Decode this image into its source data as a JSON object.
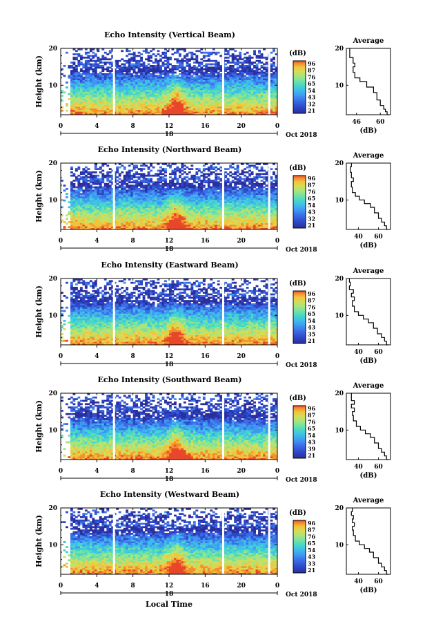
{
  "figure": {
    "xlabel": "Local Time",
    "ylabel": "Height (km)",
    "cbar_label": "(dB)",
    "avg_title": "Average",
    "avg_xlabel": "(dB)",
    "date_day": "18",
    "date_month": "Oct 2018"
  },
  "colormap": [
    "#2b2f9e",
    "#2d49c9",
    "#3b6ee6",
    "#3f98f2",
    "#3ebdea",
    "#47d7c8",
    "#74e3a2",
    "#aae47b",
    "#d6dc58",
    "#f2c43d",
    "#f48f2c",
    "#e8472a"
  ],
  "chart_data": [
    {
      "type": "heatmap",
      "title": "Echo Intensity (Vertical Beam)",
      "x": [
        0,
        24
      ],
      "xticks": [
        "0",
        "4",
        "8",
        "12",
        "16",
        "20",
        "0"
      ],
      "ylim": [
        2,
        20
      ],
      "yticks": [
        "20",
        "10"
      ],
      "ytick_values": [
        20,
        10
      ],
      "cbar_ticks": [
        "96",
        "87",
        "76",
        "65",
        "54",
        "43",
        "32",
        "21"
      ],
      "avg_xticks": [
        "46",
        "60"
      ],
      "avg_xtick_values": [
        46,
        60
      ],
      "avg_xlim": [
        40,
        66
      ],
      "avg_profile": [
        [
          65,
          2
        ],
        [
          64,
          2.8
        ],
        [
          63,
          3.5
        ],
        [
          62,
          4.5
        ],
        [
          60,
          6
        ],
        [
          58,
          8
        ],
        [
          56,
          9.5
        ],
        [
          52,
          11
        ],
        [
          48,
          12
        ],
        [
          45,
          13.5
        ],
        [
          44,
          15
        ],
        [
          45,
          16
        ],
        [
          44,
          17.5
        ],
        [
          42,
          18.5
        ],
        [
          42,
          20
        ]
      ]
    },
    {
      "type": "heatmap",
      "title": "Echo Intensity (Northward Beam)",
      "x": [
        0,
        24
      ],
      "xticks": [
        "0",
        "4",
        "8",
        "12",
        "16",
        "20",
        "0"
      ],
      "ylim": [
        2,
        20
      ],
      "yticks": [
        "20",
        "10"
      ],
      "ytick_values": [
        20,
        10
      ],
      "cbar_ticks": [
        "96",
        "87",
        "76",
        "65",
        "54",
        "43",
        "32",
        "21"
      ],
      "avg_xticks": [
        "40",
        "60"
      ],
      "avg_xtick_values": [
        40,
        60
      ],
      "avg_xlim": [
        28,
        72
      ],
      "avg_profile": [
        [
          70,
          2
        ],
        [
          68,
          3
        ],
        [
          66,
          4
        ],
        [
          63,
          5
        ],
        [
          60,
          6.5
        ],
        [
          56,
          8
        ],
        [
          52,
          9
        ],
        [
          46,
          10
        ],
        [
          41,
          11
        ],
        [
          37,
          12
        ],
        [
          34,
          13.5
        ],
        [
          33,
          15
        ],
        [
          35,
          16
        ],
        [
          33,
          17.5
        ],
        [
          32,
          19
        ],
        [
          33,
          20
        ]
      ]
    },
    {
      "type": "heatmap",
      "title": "Echo Intensity (Eastward Beam)",
      "x": [
        0,
        24
      ],
      "xticks": [
        "0",
        "4",
        "8",
        "12",
        "16",
        "20",
        "0"
      ],
      "ylim": [
        2,
        20
      ],
      "yticks": [
        "20",
        "10"
      ],
      "ytick_values": [
        20,
        10
      ],
      "cbar_ticks": [
        "96",
        "87",
        "76",
        "65",
        "54",
        "43",
        "35",
        "21"
      ],
      "avg_xticks": [
        "40",
        "60"
      ],
      "avg_xtick_values": [
        40,
        60
      ],
      "avg_xlim": [
        28,
        72
      ],
      "avg_profile": [
        [
          70,
          2
        ],
        [
          68,
          3
        ],
        [
          66,
          4
        ],
        [
          63,
          5
        ],
        [
          59,
          6.5
        ],
        [
          55,
          8
        ],
        [
          50,
          9
        ],
        [
          45,
          10
        ],
        [
          40,
          11
        ],
        [
          36,
          12.5
        ],
        [
          34,
          14
        ],
        [
          36,
          15
        ],
        [
          33,
          16
        ],
        [
          35,
          17
        ],
        [
          31,
          18
        ],
        [
          32,
          19
        ],
        [
          31,
          20
        ]
      ]
    },
    {
      "type": "heatmap",
      "title": "Echo Intensity (Southward Beam)",
      "x": [
        0,
        24
      ],
      "xticks": [
        "0",
        "4",
        "8",
        "12",
        "16",
        "20",
        "0"
      ],
      "ylim": [
        2,
        20
      ],
      "yticks": [
        "20",
        "10"
      ],
      "ytick_values": [
        20,
        10
      ],
      "cbar_ticks": [
        "96",
        "87",
        "76",
        "65",
        "54",
        "43",
        "39",
        "21"
      ],
      "avg_xticks": [
        "40",
        "60"
      ],
      "avg_xtick_values": [
        40,
        60
      ],
      "avg_xlim": [
        28,
        72
      ],
      "avg_profile": [
        [
          70,
          2
        ],
        [
          68,
          3
        ],
        [
          66,
          4
        ],
        [
          63,
          5
        ],
        [
          60,
          6.5
        ],
        [
          56,
          8
        ],
        [
          52,
          9
        ],
        [
          47,
          10
        ],
        [
          42,
          11
        ],
        [
          38,
          12.5
        ],
        [
          35,
          14
        ],
        [
          34,
          15
        ],
        [
          36,
          16
        ],
        [
          33,
          17
        ],
        [
          36,
          18
        ],
        [
          33,
          19
        ],
        [
          33,
          20
        ]
      ]
    },
    {
      "type": "heatmap",
      "title": "Echo Intensity (Westward Beam)",
      "x": [
        0,
        24
      ],
      "xticks": [
        "0",
        "4",
        "8",
        "12",
        "16",
        "20",
        "0"
      ],
      "ylim": [
        2,
        20
      ],
      "yticks": [
        "20",
        "10"
      ],
      "ytick_values": [
        20,
        10
      ],
      "cbar_ticks": [
        "96",
        "87",
        "76",
        "65",
        "54",
        "43",
        "33",
        "21"
      ],
      "avg_xticks": [
        "40",
        "60"
      ],
      "avg_xtick_values": [
        40,
        60
      ],
      "avg_xlim": [
        28,
        72
      ],
      "avg_profile": [
        [
          70,
          2
        ],
        [
          68,
          3
        ],
        [
          66,
          4
        ],
        [
          63,
          5
        ],
        [
          60,
          6.5
        ],
        [
          55,
          8
        ],
        [
          51,
          9
        ],
        [
          46,
          10
        ],
        [
          41,
          11
        ],
        [
          37,
          12.5
        ],
        [
          35,
          14
        ],
        [
          34,
          15
        ],
        [
          36,
          16
        ],
        [
          34,
          17
        ],
        [
          35,
          18
        ],
        [
          33,
          19
        ],
        [
          34,
          20
        ]
      ]
    }
  ]
}
